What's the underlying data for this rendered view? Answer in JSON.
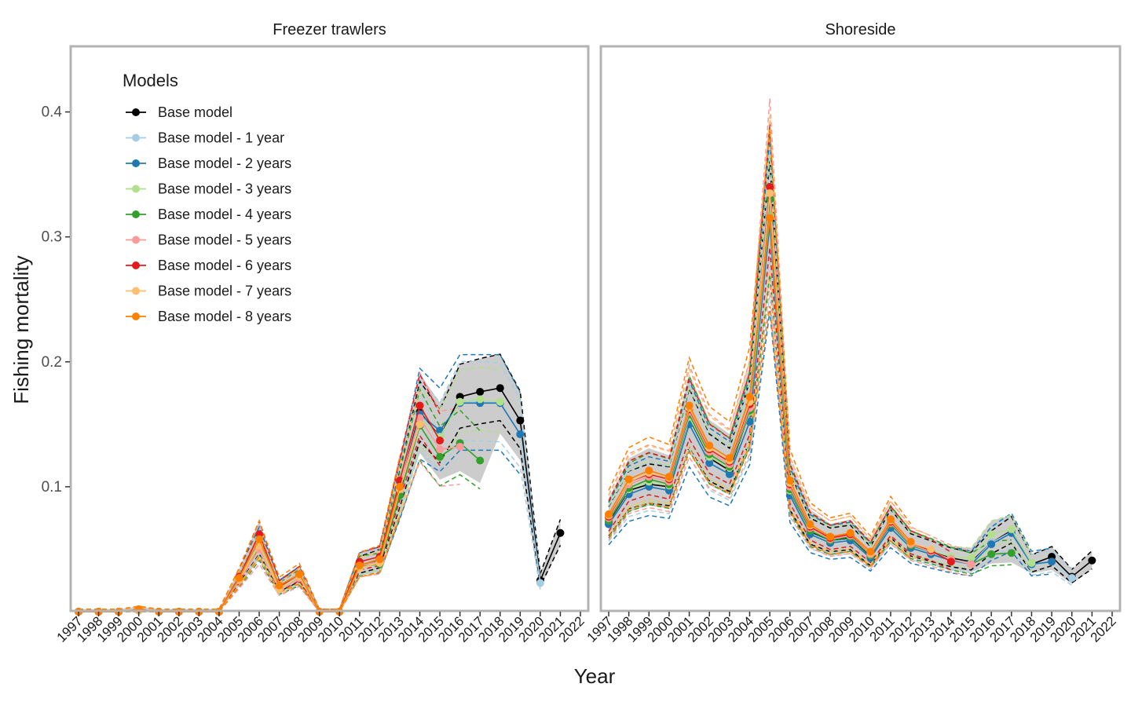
{
  "chart_data": {
    "type": "line",
    "xlabel": "Year",
    "ylabel": "Fishing mortality",
    "x": [
      1997,
      1998,
      1999,
      2000,
      2001,
      2002,
      2003,
      2004,
      2005,
      2006,
      2007,
      2008,
      2009,
      2010,
      2011,
      2012,
      2013,
      2014,
      2015,
      2016,
      2017,
      2018,
      2019,
      2020,
      2021,
      2022
    ],
    "x_tick_labels": [
      "1997",
      "1998",
      "1999",
      "2000",
      "2001",
      "2002",
      "2003",
      "2004",
      "2005",
      "2006",
      "2007",
      "2008",
      "2009",
      "2010",
      "2011",
      "2012",
      "2013",
      "2014",
      "2015",
      "2016",
      "2017",
      "2018",
      "2019",
      "2020",
      "2021",
      "2022"
    ],
    "ylim": [
      0,
      0.45
    ],
    "y_ticks": [
      0.1,
      0.2,
      0.3,
      0.4
    ],
    "y_tick_labels": [
      "0.1",
      "0.2",
      "0.3",
      "0.4"
    ],
    "grid": false,
    "legend": {
      "title": "Models",
      "position": "top-left inside first panel",
      "entries": [
        {
          "label": "Base model",
          "color": "#000000"
        },
        {
          "label": "Base model - 1 year",
          "color": "#a6cee3"
        },
        {
          "label": "Base model - 2 years",
          "color": "#1f78b4"
        },
        {
          "label": "Base model - 3 years",
          "color": "#b2df8a"
        },
        {
          "label": "Base model - 4 years",
          "color": "#33a02c"
        },
        {
          "label": "Base model - 5 years",
          "color": "#fb9a99"
        },
        {
          "label": "Base model - 6 years",
          "color": "#e31a1c"
        },
        {
          "label": "Base model - 7 years",
          "color": "#fdbf6f"
        },
        {
          "label": "Base model - 8 years",
          "color": "#ff7f00"
        }
      ]
    },
    "ribbon_color": "#cccccc",
    "panels": [
      {
        "title": "Freezer trawlers",
        "series": [
          {
            "name": "Base model",
            "x": [
              1997,
              1998,
              1999,
              2000,
              2001,
              2002,
              2003,
              2004,
              2005,
              2006,
              2007,
              2008,
              2009,
              2010,
              2011,
              2012,
              2013,
              2014,
              2015,
              2016,
              2017,
              2018,
              2019,
              2020,
              2021
            ],
            "values": [
              0,
              0,
              0,
              0.001,
              0,
              0,
              0,
              0,
              0.027,
              0.055,
              0.02,
              0.029,
              0,
              0,
              0.037,
              0.042,
              0.098,
              0.16,
              0.14,
              0.172,
              0.176,
              0.179,
              0.153,
              0.025,
              0.063
            ]
          },
          {
            "name": "Base model - 1 year",
            "x": [
              1997,
              1998,
              1999,
              2000,
              2001,
              2002,
              2003,
              2004,
              2005,
              2006,
              2007,
              2008,
              2009,
              2010,
              2011,
              2012,
              2013,
              2014,
              2015,
              2016,
              2017,
              2018,
              2019,
              2020
            ],
            "values": [
              0,
              0,
              0,
              0.001,
              0,
              0,
              0,
              0,
              0.027,
              0.055,
              0.02,
              0.029,
              0,
              0,
              0.037,
              0.041,
              0.097,
              0.158,
              0.14,
              0.168,
              0.168,
              0.167,
              0.142,
              0.023
            ]
          },
          {
            "name": "Base model - 2 years",
            "x": [
              1997,
              1998,
              1999,
              2000,
              2001,
              2002,
              2003,
              2004,
              2005,
              2006,
              2007,
              2008,
              2009,
              2010,
              2011,
              2012,
              2013,
              2014,
              2015,
              2016,
              2017,
              2018,
              2019
            ],
            "values": [
              0,
              0,
              0,
              0.001,
              0,
              0,
              0,
              0,
              0.026,
              0.054,
              0.019,
              0.028,
              0,
              0,
              0.037,
              0.041,
              0.096,
              0.158,
              0.145,
              0.167,
              0.167,
              0.167,
              0.142
            ]
          },
          {
            "name": "Base model - 3 years",
            "x": [
              1997,
              1998,
              1999,
              2000,
              2001,
              2002,
              2003,
              2004,
              2005,
              2006,
              2007,
              2008,
              2009,
              2010,
              2011,
              2012,
              2013,
              2014,
              2015,
              2016,
              2017,
              2018
            ],
            "values": [
              0,
              0,
              0,
              0.001,
              0,
              0,
              0,
              0,
              0.026,
              0.054,
              0.019,
              0.028,
              0,
              0,
              0.036,
              0.04,
              0.095,
              0.155,
              0.14,
              0.168,
              0.17,
              0.168
            ]
          },
          {
            "name": "Base model - 4 years",
            "x": [
              1997,
              1998,
              1999,
              2000,
              2001,
              2002,
              2003,
              2004,
              2005,
              2006,
              2007,
              2008,
              2009,
              2010,
              2011,
              2012,
              2013,
              2014,
              2015,
              2016,
              2017
            ],
            "values": [
              0,
              0,
              0,
              0.001,
              0,
              0,
              0,
              0,
              0.025,
              0.052,
              0.018,
              0.027,
              0,
              0,
              0.036,
              0.038,
              0.093,
              0.149,
              0.124,
              0.135,
              0.121
            ]
          },
          {
            "name": "Base model - 5 years",
            "x": [
              1997,
              1998,
              1999,
              2000,
              2001,
              2002,
              2003,
              2004,
              2005,
              2006,
              2007,
              2008,
              2009,
              2010,
              2011,
              2012,
              2013,
              2014,
              2015,
              2016
            ],
            "values": [
              0,
              0,
              0,
              0.001,
              0,
              0,
              0,
              0,
              0.025,
              0.05,
              0.018,
              0.027,
              0,
              0,
              0.037,
              0.04,
              0.1,
              0.155,
              0.13,
              0.132
            ]
          },
          {
            "name": "Base model - 6 years",
            "x": [
              1997,
              1998,
              1999,
              2000,
              2001,
              2002,
              2003,
              2004,
              2005,
              2006,
              2007,
              2008,
              2009,
              2010,
              2011,
              2012,
              2013,
              2014,
              2015
            ],
            "values": [
              0,
              0,
              0,
              0.001,
              0,
              0,
              0,
              0,
              0.028,
              0.062,
              0.02,
              0.03,
              0,
              0,
              0.04,
              0.044,
              0.105,
              0.165,
              0.137
            ]
          },
          {
            "name": "Base model - 7 years",
            "x": [
              1997,
              1998,
              1999,
              2000,
              2001,
              2002,
              2003,
              2004,
              2005,
              2006,
              2007,
              2008,
              2009,
              2010,
              2011,
              2012,
              2013,
              2014
            ],
            "values": [
              0,
              0,
              0,
              0.001,
              0,
              0,
              0,
              0,
              0.026,
              0.053,
              0.018,
              0.028,
              0,
              0,
              0.035,
              0.039,
              0.098,
              0.15
            ]
          },
          {
            "name": "Base model - 8 years",
            "x": [
              1997,
              1998,
              1999,
              2000,
              2001,
              2002,
              2003,
              2004,
              2005,
              2006,
              2007,
              2008,
              2009,
              2010,
              2011,
              2012,
              2013
            ],
            "values": [
              0,
              0,
              0,
              0.002,
              0,
              0,
              0,
              0,
              0.027,
              0.058,
              0.021,
              0.03,
              0,
              0,
              0.037,
              0.042,
              0.1
            ]
          }
        ]
      },
      {
        "title": "Shoreside",
        "series": [
          {
            "name": "Base model",
            "x": [
              1997,
              1998,
              1999,
              2000,
              2001,
              2002,
              2003,
              2004,
              2005,
              2006,
              2007,
              2008,
              2009,
              2010,
              2011,
              2012,
              2013,
              2014,
              2015,
              2016,
              2017,
              2018,
              2019,
              2020,
              2021
            ],
            "values": [
              0.072,
              0.097,
              0.102,
              0.1,
              0.155,
              0.123,
              0.113,
              0.16,
              0.315,
              0.096,
              0.064,
              0.057,
              0.059,
              0.044,
              0.07,
              0.053,
              0.048,
              0.043,
              0.04,
              0.055,
              0.065,
              0.038,
              0.044,
              0.028,
              0.041
            ]
          },
          {
            "name": "Base model - 1 year",
            "x": [
              1997,
              1998,
              1999,
              2000,
              2001,
              2002,
              2003,
              2004,
              2005,
              2006,
              2007,
              2008,
              2009,
              2010,
              2011,
              2012,
              2013,
              2014,
              2015,
              2016,
              2017,
              2018,
              2019,
              2020
            ],
            "values": [
              0.07,
              0.094,
              0.1,
              0.097,
              0.152,
              0.12,
              0.11,
              0.152,
              0.31,
              0.094,
              0.063,
              0.056,
              0.058,
              0.043,
              0.068,
              0.052,
              0.047,
              0.042,
              0.039,
              0.055,
              0.064,
              0.037,
              0.04,
              0.027
            ]
          },
          {
            "name": "Base model - 2 years",
            "x": [
              1997,
              1998,
              1999,
              2000,
              2001,
              2002,
              2003,
              2004,
              2005,
              2006,
              2007,
              2008,
              2009,
              2010,
              2011,
              2012,
              2013,
              2014,
              2015,
              2016,
              2017,
              2018,
              2019
            ],
            "values": [
              0.07,
              0.094,
              0.1,
              0.097,
              0.15,
              0.119,
              0.11,
              0.152,
              0.31,
              0.093,
              0.062,
              0.055,
              0.057,
              0.043,
              0.067,
              0.051,
              0.046,
              0.041,
              0.038,
              0.054,
              0.063,
              0.038,
              0.04
            ]
          },
          {
            "name": "Base model - 3 years",
            "x": [
              1997,
              1998,
              1999,
              2000,
              2001,
              2002,
              2003,
              2004,
              2005,
              2006,
              2007,
              2008,
              2009,
              2010,
              2011,
              2012,
              2013,
              2014,
              2015,
              2016,
              2017,
              2018
            ],
            "values": [
              0.073,
              0.098,
              0.104,
              0.101,
              0.156,
              0.124,
              0.115,
              0.16,
              0.318,
              0.097,
              0.065,
              0.058,
              0.06,
              0.045,
              0.071,
              0.054,
              0.049,
              0.044,
              0.043,
              0.062,
              0.066,
              0.039
            ]
          },
          {
            "name": "Base model - 4 years",
            "x": [
              1997,
              1998,
              1999,
              2000,
              2001,
              2002,
              2003,
              2004,
              2005,
              2006,
              2007,
              2008,
              2009,
              2010,
              2011,
              2012,
              2013,
              2014,
              2015,
              2016,
              2017
            ],
            "values": [
              0.073,
              0.099,
              0.106,
              0.102,
              0.158,
              0.126,
              0.116,
              0.161,
              0.33,
              0.098,
              0.065,
              0.057,
              0.06,
              0.045,
              0.07,
              0.053,
              0.048,
              0.042,
              0.038,
              0.046,
              0.047
            ]
          },
          {
            "name": "Base model - 5 years",
            "x": [
              1997,
              1998,
              1999,
              2000,
              2001,
              2002,
              2003,
              2004,
              2005,
              2006,
              2007,
              2008,
              2009,
              2010,
              2011,
              2012,
              2013,
              2014,
              2015
            ],
            "values": [
              0.075,
              0.102,
              0.108,
              0.104,
              0.16,
              0.128,
              0.118,
              0.163,
              0.335,
              0.1,
              0.067,
              0.058,
              0.061,
              0.046,
              0.071,
              0.054,
              0.048,
              0.042,
              0.038
            ]
          },
          {
            "name": "Base model - 6 years",
            "x": [
              1997,
              1998,
              1999,
              2000,
              2001,
              2002,
              2003,
              2004,
              2005,
              2006,
              2007,
              2008,
              2009,
              2010,
              2011,
              2012,
              2013,
              2014
            ],
            "values": [
              0.076,
              0.104,
              0.11,
              0.106,
              0.162,
              0.13,
              0.12,
              0.166,
              0.34,
              0.102,
              0.068,
              0.059,
              0.062,
              0.047,
              0.072,
              0.055,
              0.049,
              0.04
            ]
          },
          {
            "name": "Base model - 7 years",
            "x": [
              1997,
              1998,
              1999,
              2000,
              2001,
              2002,
              2003,
              2004,
              2005,
              2006,
              2007,
              2008,
              2009,
              2010,
              2011,
              2012,
              2013
            ],
            "values": [
              0.077,
              0.104,
              0.111,
              0.107,
              0.163,
              0.131,
              0.121,
              0.168,
              0.335,
              0.103,
              0.069,
              0.06,
              0.063,
              0.047,
              0.073,
              0.055,
              0.05
            ]
          },
          {
            "name": "Base model - 8 years",
            "x": [
              1997,
              1998,
              1999,
              2000,
              2001,
              2002,
              2003,
              2004,
              2005,
              2006,
              2007,
              2008,
              2009,
              2010,
              2011,
              2012
            ],
            "values": [
              0.078,
              0.106,
              0.113,
              0.108,
              0.165,
              0.133,
              0.123,
              0.172,
              0.315,
              0.105,
              0.07,
              0.06,
              0.063,
              0.048,
              0.074,
              0.056
            ]
          }
        ]
      }
    ]
  }
}
